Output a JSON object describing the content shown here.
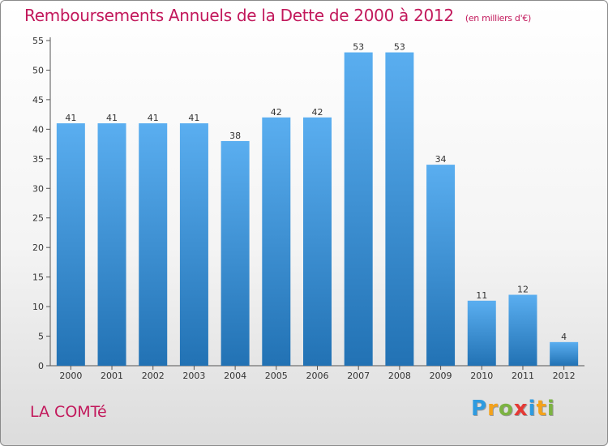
{
  "header": {
    "title": "Remboursements Annuels de la Dette de 2000 à 2012",
    "subtitle": "(en milliers d'€)"
  },
  "footer": {
    "commune": "LA COMTé",
    "logo_letters": [
      "P",
      "r",
      "o",
      "x",
      "i",
      "t",
      "i"
    ],
    "logo_colors": [
      "#2e9be0",
      "#f4a21b",
      "#7cb342",
      "#e53935",
      "#2e9be0",
      "#f4a21b",
      "#7cb342"
    ]
  },
  "chart_data": {
    "type": "bar",
    "title": "Remboursements Annuels de la Dette de 2000 à 2012",
    "subtitle": "(en milliers d'€)",
    "categories": [
      "2000",
      "2001",
      "2002",
      "2003",
      "2004",
      "2005",
      "2006",
      "2007",
      "2008",
      "2009",
      "2010",
      "2011",
      "2012"
    ],
    "values": [
      41,
      41,
      41,
      41,
      38,
      42,
      42,
      53,
      53,
      34,
      11,
      12,
      4
    ],
    "ylim": [
      0,
      55
    ],
    "yticks": [
      0,
      5,
      10,
      15,
      20,
      25,
      30,
      35,
      40,
      45,
      50,
      55
    ],
    "grid": false,
    "data_labels": true,
    "colors": {
      "bar_top": "#5aaef0",
      "bar_bottom": "#2272b4",
      "axis": "#555555",
      "title": "#c2185b"
    }
  }
}
